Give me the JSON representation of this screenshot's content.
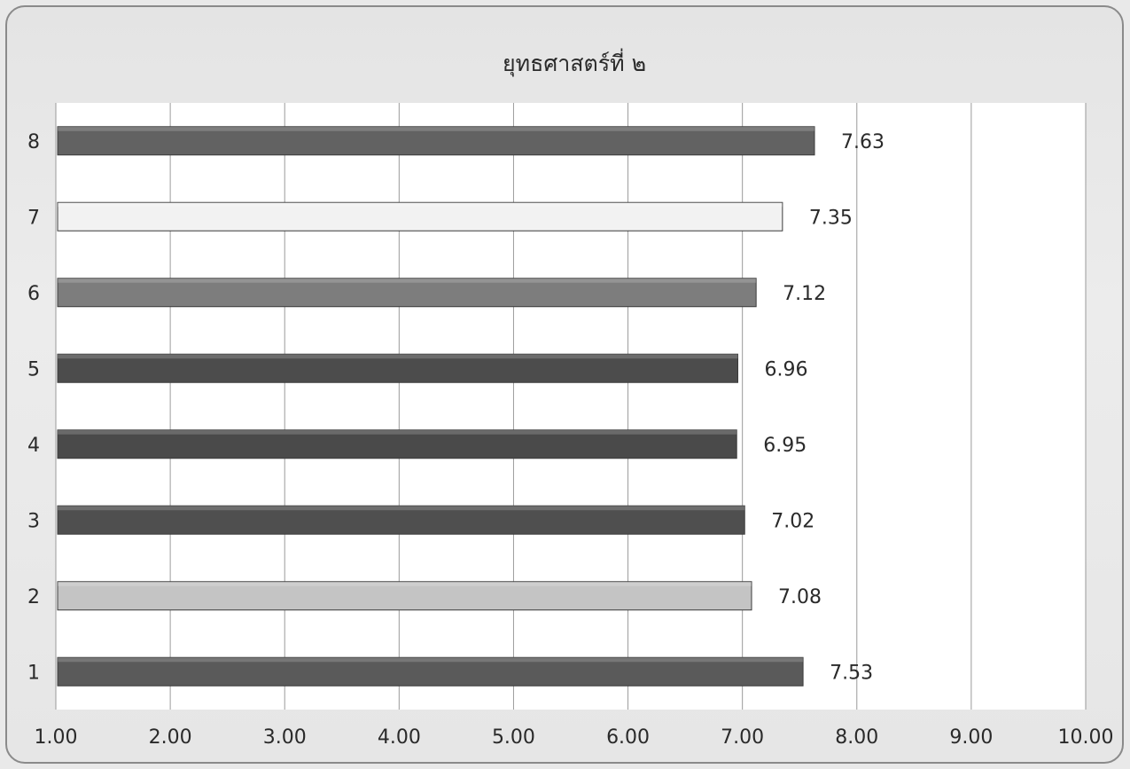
{
  "chart_data": {
    "type": "bar",
    "orientation": "horizontal",
    "title": "ยุทธศาสตร์ที่ ๒",
    "categories": [
      "1",
      "2",
      "3",
      "4",
      "5",
      "6",
      "7",
      "8"
    ],
    "values": [
      7.53,
      7.08,
      7.02,
      6.95,
      6.96,
      7.12,
      7.35,
      7.63
    ],
    "data_labels": [
      "7.53",
      "7.08",
      "7.02",
      "6.95",
      "6.96",
      "7.12",
      "7.35",
      "7.63"
    ],
    "xlim": [
      1.0,
      10.0
    ],
    "x_ticks": [
      "1.00",
      "2.00",
      "3.00",
      "4.00",
      "5.00",
      "6.00",
      "7.00",
      "8.00",
      "9.00",
      "10.00"
    ],
    "grid": "vertical",
    "legend": "none",
    "bar_colors": [
      "#5a5a5a",
      "#c4c4c4",
      "#4f4f4f",
      "#4a4a4a",
      "#4c4c4c",
      "#7d7d7d",
      "#f2f2f2",
      "#626262"
    ],
    "plot_background": "#ffffff",
    "gridline_color": "#9a9a9a"
  }
}
